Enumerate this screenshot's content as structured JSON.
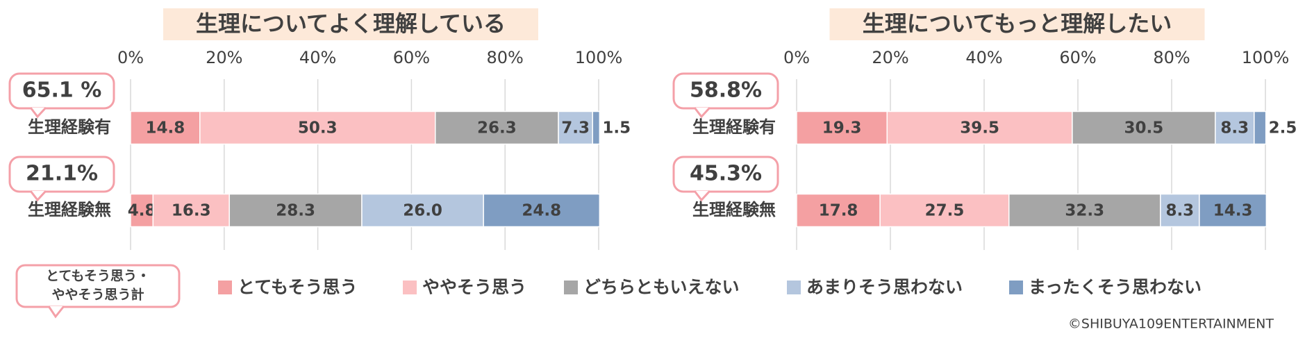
{
  "chart_data": [
    {
      "type": "bar",
      "orientation": "horizontal",
      "stacked": true,
      "title": "生理についてよく理解している",
      "categories": [
        "生理経験有",
        "生理経験無"
      ],
      "series": [
        {
          "name": "とてもそう思う",
          "color": "#f4a0a2",
          "values": [
            14.8,
            4.8
          ]
        },
        {
          "name": "ややそう思う",
          "color": "#fbc0c2",
          "values": [
            50.3,
            16.3
          ]
        },
        {
          "name": "どちらともいえない",
          "color": "#a6a6a6",
          "values": [
            26.3,
            28.3
          ]
        },
        {
          "name": "あまりそう思わない",
          "color": "#b4c6de",
          "values": [
            7.3,
            26
          ],
          "value_labels": [
            "7.3",
            "26.0"
          ]
        },
        {
          "name": "まったくそう思わない",
          "color": "#7f9dc2",
          "values": [
            1.5,
            24.8
          ]
        }
      ],
      "annotations": [
        "65.1 %",
        "21.1%"
      ],
      "xlim": [
        0,
        100
      ],
      "xticks": [
        {
          "value": 0,
          "label": "0%"
        },
        {
          "value": 20,
          "label": "20%"
        },
        {
          "value": 40,
          "label": "40%"
        },
        {
          "value": 60,
          "label": "60%"
        },
        {
          "value": 80,
          "label": "80%"
        },
        {
          "value": 100,
          "label": "100%"
        }
      ],
      "grid": true
    },
    {
      "type": "bar",
      "orientation": "horizontal",
      "stacked": true,
      "title": "生理についてもっと理解したい",
      "categories": [
        "生理経験有",
        "生理経験無"
      ],
      "series": [
        {
          "name": "とてもそう思う",
          "color": "#f4a0a2",
          "values": [
            19.3,
            17.8
          ]
        },
        {
          "name": "ややそう思う",
          "color": "#fbc0c2",
          "values": [
            39.5,
            27.5
          ]
        },
        {
          "name": "どちらともいえない",
          "color": "#a6a6a6",
          "values": [
            30.5,
            32.3
          ]
        },
        {
          "name": "あまりそう思わない",
          "color": "#b4c6de",
          "values": [
            8.3,
            8.3
          ]
        },
        {
          "name": "まったくそう思わない",
          "color": "#7f9dc2",
          "values": [
            2.5,
            14.3
          ]
        }
      ],
      "annotations": [
        "58.8%",
        "45.3%"
      ],
      "xlim": [
        0,
        100
      ],
      "xticks": [
        {
          "value": 0,
          "label": "0%"
        },
        {
          "value": 20,
          "label": "20%"
        },
        {
          "value": 40,
          "label": "40%"
        },
        {
          "value": 60,
          "label": "60%"
        },
        {
          "value": 80,
          "label": "80%"
        },
        {
          "value": 100,
          "label": "100%"
        }
      ],
      "grid": true
    }
  ],
  "legend_note": [
    "とてもそう思う・",
    "ややそう思う計"
  ],
  "footer": "©SHIBUYA109ENTERTAINMENT"
}
